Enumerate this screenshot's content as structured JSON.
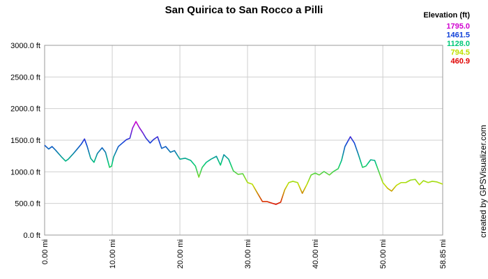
{
  "chart_data": {
    "type": "line",
    "title": "San Quirica to San Rocco a Pilli",
    "legend_title": "Elevation (ft)",
    "color_scale": [
      {
        "value": 1795.0,
        "label": "1795.0",
        "color": "#d000d0"
      },
      {
        "value": 1461.5,
        "label": "1461.5",
        "color": "#1040d8"
      },
      {
        "value": 1128.0,
        "label": "1128.0",
        "color": "#00c878"
      },
      {
        "value": 794.5,
        "label": "794.5",
        "color": "#c0e000"
      },
      {
        "value": 460.9,
        "label": "460.9",
        "color": "#e00000"
      }
    ],
    "credit": "created by GPSVisualizer.com",
    "grid": true,
    "xlim": [
      0,
      58.85
    ],
    "ylim": [
      0,
      3000
    ],
    "xticks": [
      {
        "value": 0,
        "label": "0.00 mi"
      },
      {
        "value": 10,
        "label": "10.00 mi"
      },
      {
        "value": 20,
        "label": "20.00 mi"
      },
      {
        "value": 30,
        "label": "30.00 mi"
      },
      {
        "value": 40,
        "label": "40.00 mi"
      },
      {
        "value": 50,
        "label": "50.00 mi"
      },
      {
        "value": 58.85,
        "label": "58.85 mi"
      }
    ],
    "yticks": [
      {
        "value": 0,
        "label": "0.0 ft"
      },
      {
        "value": 500,
        "label": "500.0 ft"
      },
      {
        "value": 1000,
        "label": "1000.0 ft"
      },
      {
        "value": 1500,
        "label": "1500.0 ft"
      },
      {
        "value": 2000,
        "label": "2000.0 ft"
      },
      {
        "value": 2500,
        "label": "2500.0 ft"
      },
      {
        "value": 3000,
        "label": "3000.0 ft"
      }
    ],
    "x": [
      0,
      0.6,
      1.1,
      1.6,
      2.5,
      3.1,
      3.5,
      4.1,
      4.7,
      5.4,
      5.9,
      6.3,
      6.8,
      7.3,
      7.8,
      8.5,
      9.0,
      9.6,
      9.9,
      10.2,
      10.9,
      11.5,
      12.1,
      12.6,
      13.0,
      13.5,
      14.0,
      14.5,
      15.0,
      15.6,
      16.1,
      16.7,
      17.3,
      17.9,
      18.6,
      19.2,
      20.0,
      20.8,
      21.6,
      22.3,
      22.8,
      23.3,
      23.9,
      24.6,
      25.4,
      26.0,
      26.5,
      27.2,
      27.9,
      28.6,
      29.3,
      30.0,
      30.7,
      31.4,
      32.2,
      32.9,
      33.6,
      34.2,
      34.9,
      35.5,
      36.1,
      36.7,
      37.4,
      38.1,
      38.8,
      39.4,
      40.0,
      40.6,
      41.3,
      42.1,
      42.7,
      43.4,
      43.9,
      44.4,
      45.2,
      45.8,
      46.4,
      47.0,
      47.5,
      48.2,
      48.8,
      49.4,
      50.0,
      50.7,
      51.3,
      52.0,
      52.7,
      53.4,
      54.1,
      54.8,
      55.4,
      56.0,
      56.7,
      57.3,
      58.0,
      58.85
    ],
    "values": [
      1420,
      1360,
      1400,
      1345,
      1235,
      1170,
      1200,
      1270,
      1345,
      1435,
      1520,
      1400,
      1215,
      1150,
      1290,
      1380,
      1310,
      1070,
      1090,
      1235,
      1400,
      1455,
      1510,
      1530,
      1690,
      1795,
      1700,
      1620,
      1530,
      1455,
      1510,
      1555,
      1370,
      1400,
      1310,
      1335,
      1200,
      1215,
      1180,
      1090,
      915,
      1070,
      1150,
      1200,
      1245,
      1105,
      1270,
      1200,
      1015,
      960,
      970,
      830,
      805,
      675,
      530,
      530,
      505,
      485,
      520,
      715,
      830,
      850,
      830,
      660,
      805,
      950,
      980,
      950,
      1005,
      950,
      1005,
      1050,
      1180,
      1400,
      1555,
      1455,
      1270,
      1070,
      1090,
      1190,
      1180,
      1005,
      830,
      740,
      695,
      785,
      830,
      830,
      870,
      880,
      795,
      860,
      830,
      850,
      840,
      805
    ]
  }
}
